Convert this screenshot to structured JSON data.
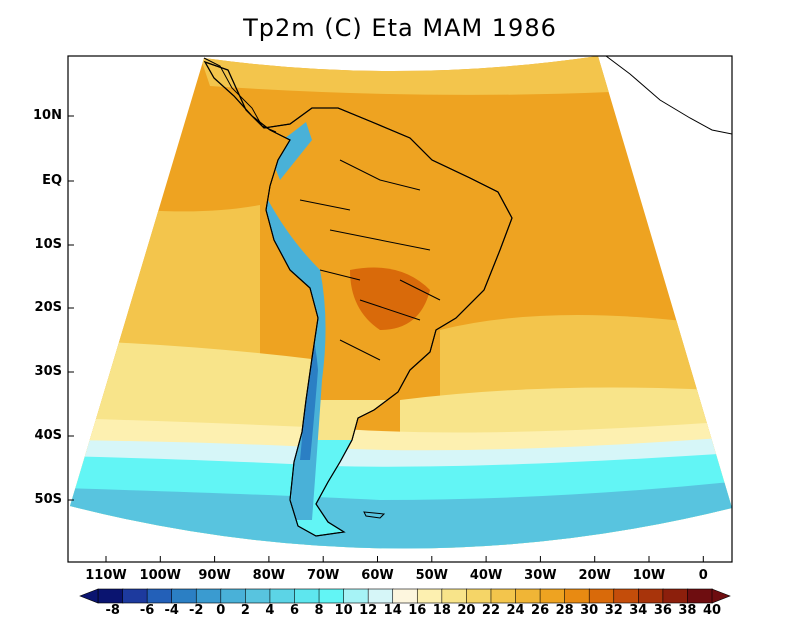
{
  "title": "Tp2m (C) Eta MAM 1986",
  "lat_labels": [
    "10N",
    "EQ",
    "10S",
    "20S",
    "30S",
    "40S",
    "50S"
  ],
  "lon_labels": [
    "110W",
    "100W",
    "90W",
    "80W",
    "70W",
    "60W",
    "50W",
    "40W",
    "30W",
    "20W",
    "10W",
    "0"
  ],
  "colorbar": {
    "labels": [
      "-8",
      "-6",
      "-4",
      "-2",
      "0",
      "2",
      "4",
      "6",
      "8",
      "10",
      "12",
      "14",
      "16",
      "18",
      "20",
      "22",
      "24",
      "26",
      "28",
      "30",
      "32",
      "34",
      "36",
      "38",
      "40"
    ],
    "colors": [
      "#0a1470",
      "#1d3a9e",
      "#2360b8",
      "#2b7fc4",
      "#3a9bd0",
      "#49b1d8",
      "#58c4df",
      "#5cd4e6",
      "#5ee6ee",
      "#62f5f5",
      "#a6f3f6",
      "#d6f6f8",
      "#fdf6de",
      "#fdf0b0",
      "#f8e48a",
      "#f5d567",
      "#f3c54c",
      "#f0b536",
      "#eea321",
      "#e88a12",
      "#d96a0a",
      "#c44d0a",
      "#a8340b",
      "#8c1f0c",
      "#6e0d10"
    ]
  },
  "fields": {
    "tropics": "#eea321",
    "subtropics": "#f3c54c",
    "midlat": "#f8e48a",
    "cool": "#fdf0b0",
    "pale": "#d6f6f8",
    "cyan": "#62f5f5",
    "deep": "#58c4df",
    "andes_cold": "#2b7fc4",
    "andes_cool": "#49b1d8",
    "hot_core": "#d96a0a"
  }
}
